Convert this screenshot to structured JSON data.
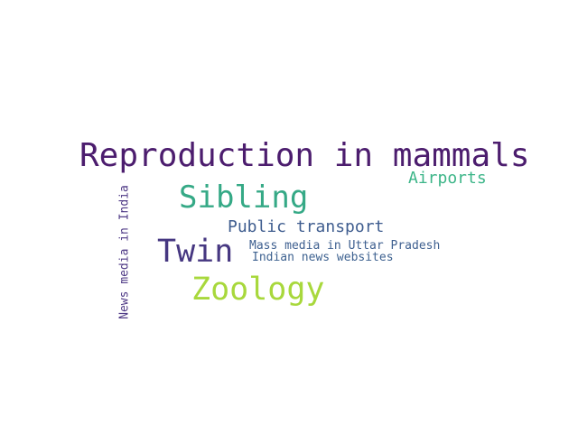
{
  "words": [
    {
      "text": "Reproduction in mammals",
      "color": "#4c1d6e"
    },
    {
      "text": "Sibling",
      "color": "#35a986"
    },
    {
      "text": "Airports",
      "color": "#3cb588"
    },
    {
      "text": "Public transport",
      "color": "#3f5d8f"
    },
    {
      "text": "Twin",
      "color": "#463781"
    },
    {
      "text": "Mass media in Uttar Pradesh",
      "color": "#3f6090"
    },
    {
      "text": "Indian news websites",
      "color": "#3e6290"
    },
    {
      "text": "Zoology",
      "color": "#a8d83c"
    },
    {
      "text": "News media in India",
      "color": "#4f3a86"
    }
  ]
}
